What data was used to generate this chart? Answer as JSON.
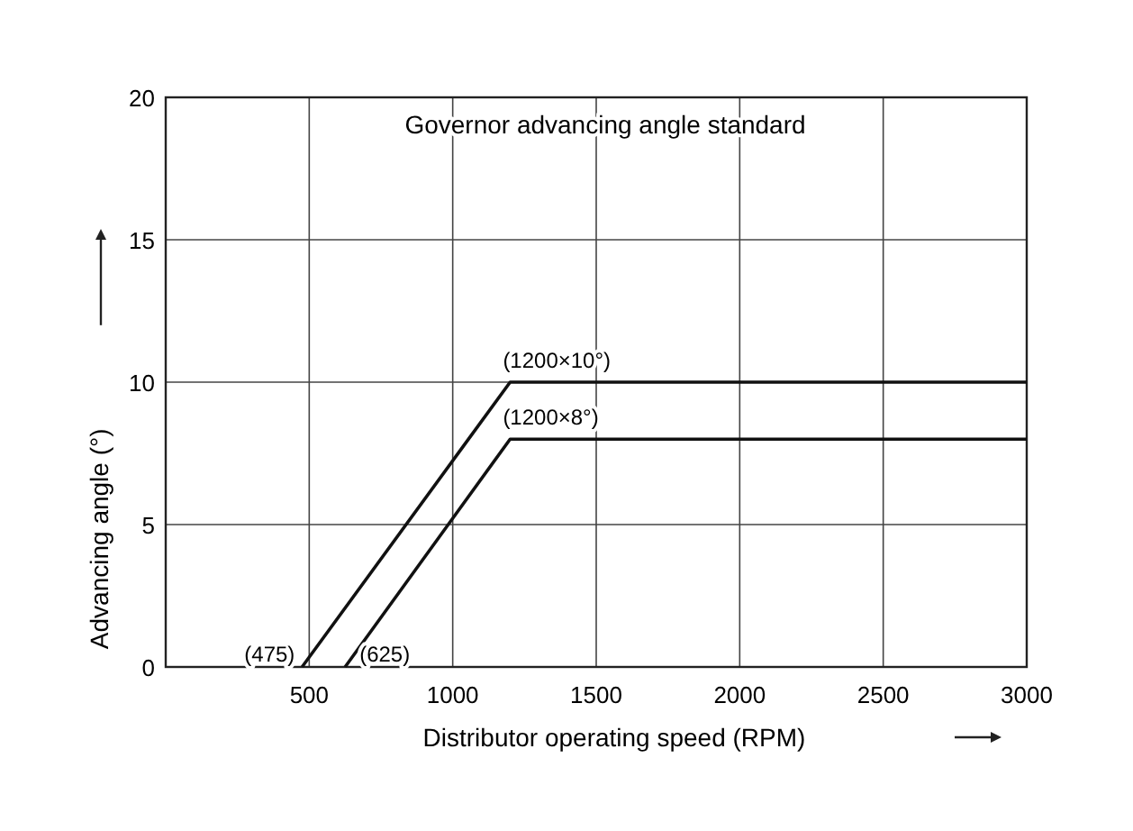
{
  "chart_data": {
    "type": "line",
    "title": "Governor advancing angle standard",
    "xlabel": "Distributor operating speed (RPM)",
    "ylabel": "Advancing angle (°)",
    "xlim": [
      0,
      3000
    ],
    "xticks": [
      {
        "value": 0,
        "label": null
      },
      500,
      1000,
      1500,
      2000,
      2500,
      3000
    ],
    "ylim": [
      0,
      20
    ],
    "yticks": [
      0,
      5,
      10,
      15,
      20
    ],
    "grid": true,
    "marker": "none",
    "line_style": "solid",
    "series": [
      {
        "color": "#111111",
        "x": [
          475,
          1200,
          3000
        ],
        "values": [
          0,
          10,
          10
        ]
      },
      {
        "color": "#111111",
        "x": [
          625,
          1200,
          3000
        ],
        "values": [
          0,
          8,
          8
        ]
      }
    ],
    "annotations": [
      {
        "text": "(1200×10°)",
        "x": 1200,
        "y": 10
      },
      {
        "text": "(1200×8°)",
        "x": 1200,
        "y": 8
      },
      {
        "text": "(475)",
        "x": 475,
        "y": 0
      },
      {
        "text": "(625)",
        "x": 625,
        "y": 0
      }
    ]
  }
}
